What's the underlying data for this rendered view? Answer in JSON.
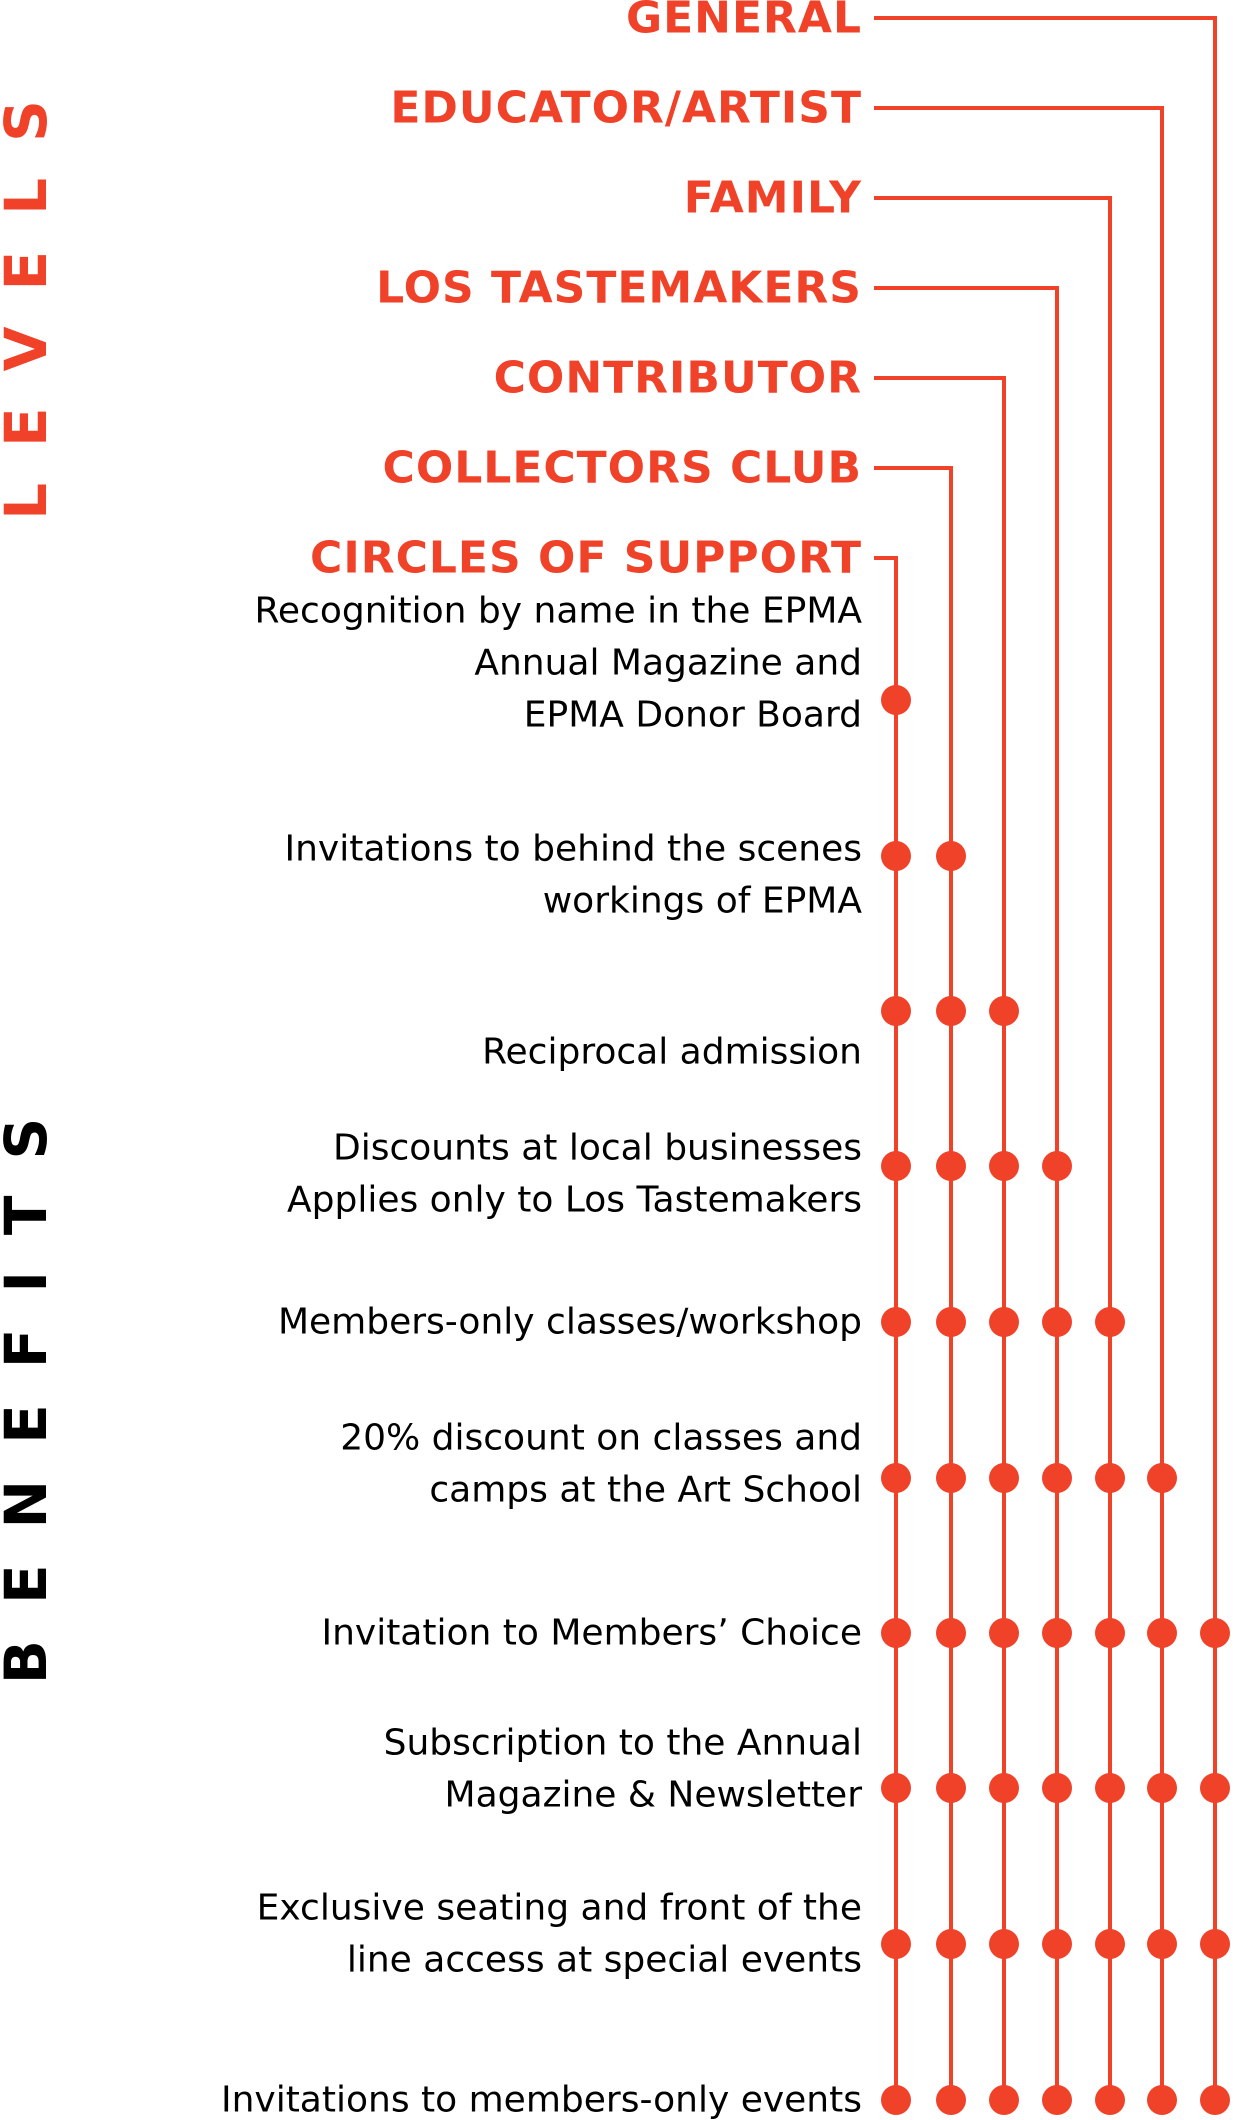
{
  "section_labels": {
    "levels": "LEVELS",
    "benefits": "BENEFITS"
  },
  "colors": {
    "accent": "#f04129",
    "text": "#000000",
    "background": "#ffffff"
  },
  "levels": [
    "GENERAL",
    "EDUCATOR/ARTIST",
    "FAMILY",
    "LOS TASTEMAKERS",
    "CONTRIBUTOR",
    "COLLECTORS CLUB",
    "CIRCLES OF SUPPORT"
  ],
  "benefits": [
    {
      "lines": [
        "Recognition by name in the EPMA",
        "Annual Magazine and",
        "EPMA Donor Board"
      ],
      "level_count": 1
    },
    {
      "lines": [
        "Invitations to behind the scenes",
        "workings of EPMA"
      ],
      "level_count": 2
    },
    {
      "lines": [
        "Reciprocal admission"
      ],
      "level_count": 3
    },
    {
      "lines": [
        "Discounts at local businesses",
        "Applies only to Los Tastemakers"
      ],
      "level_count": 4
    },
    {
      "lines": [
        "Members-only classes/workshop"
      ],
      "level_count": 5
    },
    {
      "lines": [
        "20% discount on classes and",
        "camps at the Art School"
      ],
      "level_count": 6
    },
    {
      "lines": [
        "Invitation to Members’ Choice"
      ],
      "level_count": 7
    },
    {
      "lines": [
        "Subscription to the Annual",
        "Magazine & Newsletter"
      ],
      "level_count": 7
    },
    {
      "lines": [
        "Exclusive seating and front of the",
        "line access at special events"
      ],
      "level_count": 7
    },
    {
      "lines": [
        "Invitations to members-only events"
      ],
      "level_count": 7
    }
  ]
}
